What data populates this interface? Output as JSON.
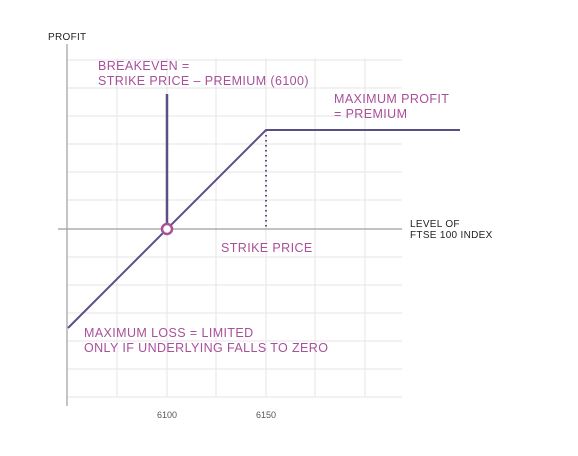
{
  "chart_data": {
    "type": "line",
    "ylabel": "PROFIT",
    "xlabel": [
      "LEVEL OF",
      "FTSE 100 INDEX"
    ],
    "x_ticks": [
      6100,
      6150
    ],
    "xlim": [
      6050,
      6200
    ],
    "ylim": [
      -50,
      50
    ],
    "grid": true,
    "series": [
      {
        "x": [
          6050,
          6150,
          6200
        ],
        "y": [
          -50,
          50,
          50
        ]
      }
    ],
    "breakeven_x": 6100,
    "strike_x": 6150,
    "annotations": {
      "breakeven": [
        "BREAKEVEN =",
        "STRIKE PRICE – PREMIUM (6100)"
      ],
      "max_profit": [
        "MAXIMUM PROFIT",
        "= PREMIUM"
      ],
      "strike_price": [
        "STRIKE PRICE"
      ],
      "max_loss": [
        "MAXIMUM LOSS = LIMITED",
        "ONLY IF UNDERLYING FALLS TO ZERO"
      ]
    },
    "colors": {
      "line": "#5c4d85",
      "annotation": "#a8509a",
      "grid": "#e6e6e6",
      "axis": "#9e9e9e",
      "marker_fill": "#ffffff"
    }
  }
}
